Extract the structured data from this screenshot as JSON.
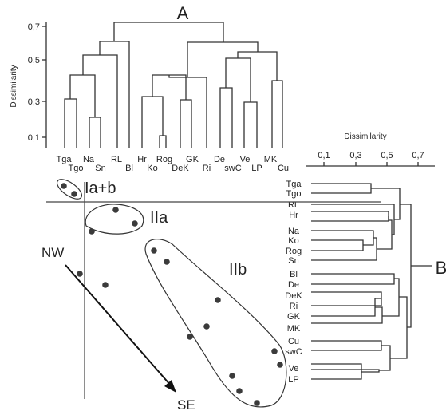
{
  "top_dendrogram": {
    "title": "A",
    "y_axis_label": "Dissimilarity",
    "y_ticks": [
      "0,1",
      "0,3",
      "0,5",
      "0,7"
    ],
    "leaves": [
      "Tga",
      "Tgo",
      "Na",
      "Sn",
      "RL",
      "Bl",
      "Hr",
      "Ko",
      "Rog",
      "DeK",
      "GK",
      "Ri",
      "De",
      "swC",
      "Ve",
      "LP",
      "MK",
      "Cu"
    ]
  },
  "right_dendrogram": {
    "title": "B",
    "x_axis_label": "Dissimilarity",
    "x_ticks": [
      "0,1",
      "0,3",
      "0,5",
      "0,7"
    ],
    "leaves": [
      "Tga",
      "Tgo",
      "RL",
      "Hr",
      "Na",
      "Ko",
      "Rog",
      "Sn",
      "Bl",
      "De",
      "DeK",
      "Ri",
      "GK",
      "MK",
      "Cu",
      "swC",
      "Ve",
      "LP"
    ]
  },
  "ordination": {
    "groups": [
      {
        "id": "ia-b",
        "label": "Ia+b"
      },
      {
        "id": "iia",
        "label": "IIa"
      },
      {
        "id": "iib",
        "label": "IIb"
      }
    ],
    "gradient": {
      "start_label": "NW",
      "end_label": "SE"
    }
  }
}
